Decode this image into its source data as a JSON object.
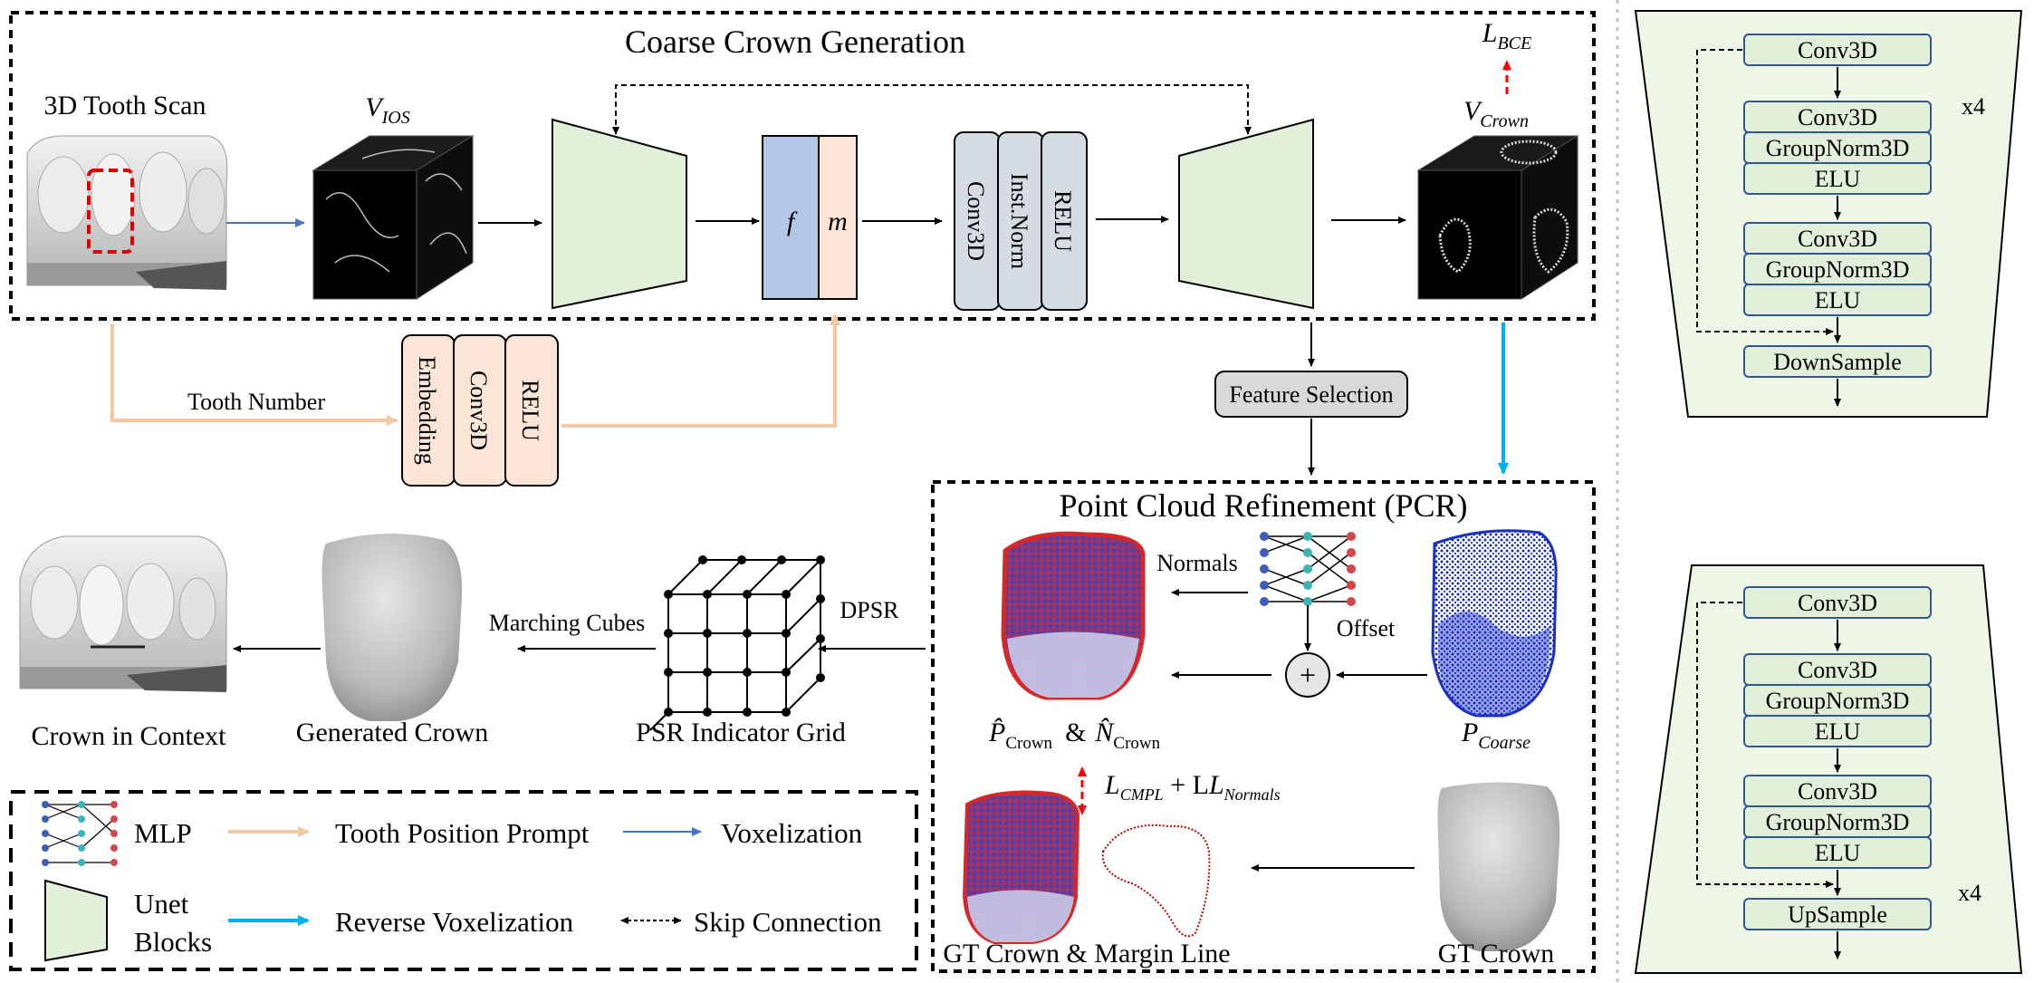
{
  "colors": {
    "unet_fill": "#e2efd9",
    "feature_f": "#b4c7e7",
    "feature_m": "#fbe5d6",
    "block_gray": "#d6dce4",
    "embed_fill": "#fbe5d6",
    "prompt_arrow": "#f4c7a3",
    "voxel_arrow": "#4472c4",
    "reverse_arrow": "#00b0f0",
    "loss_arrow": "#ff0000",
    "stack_border": "#2f5597"
  },
  "coarse": {
    "title": "Coarse Crown Generation",
    "scan_label": "3D Tooth Scan",
    "v_ios": "V_IOS",
    "feat_f": "f",
    "feat_m": "m",
    "block_conv": "Conv3D",
    "block_norm": "Inst.Norm",
    "block_relu": "RELU",
    "v_crown": "V_Crown",
    "loss_bce": "L_BCE"
  },
  "prompt": {
    "tooth_number": "Tooth Number",
    "embedding": "Embedding",
    "conv": "Conv3D",
    "relu": "RELU"
  },
  "feature_selection": "Feature Selection",
  "pcr": {
    "title": "Point Cloud Refinement (PCR)",
    "normals": "Normals",
    "offset": "Offset",
    "plus": "+",
    "p_hat": "P̂",
    "n_hat": "N̂",
    "crown_sub": "Crown",
    "amp": "&",
    "p_coarse": "P_Coarse",
    "loss": "L_CMPL + L_Normals",
    "gt_margin": "GT Crown & Margin Line",
    "gt_crown": "GT Crown"
  },
  "bottom": {
    "crown_in_context": "Crown in Context",
    "generated_crown": "Generated Crown",
    "psr_grid": "PSR Indicator Grid",
    "marching_cubes": "Marching Cubes",
    "dpsr": "DPSR"
  },
  "legend": {
    "mlp": "MLP",
    "tooth_position_prompt": "Tooth Position Prompt",
    "voxelization": "Voxelization",
    "unet_line1": "Unet",
    "unet_line2": "Blocks",
    "reverse_voxelization": "Reverse Voxelization",
    "skip_connection": "Skip Connection"
  },
  "encoder": {
    "stack": [
      "Conv3D",
      "Conv3D",
      "GroupNorm3D",
      "ELU",
      "Conv3D",
      "GroupNorm3D",
      "ELU",
      "DownSample"
    ],
    "repeat": "x4"
  },
  "decoder": {
    "stack": [
      "Conv3D",
      "Conv3D",
      "GroupNorm3D",
      "ELU",
      "Conv3D",
      "GroupNorm3D",
      "ELU",
      "UpSample"
    ],
    "repeat": "x4"
  }
}
